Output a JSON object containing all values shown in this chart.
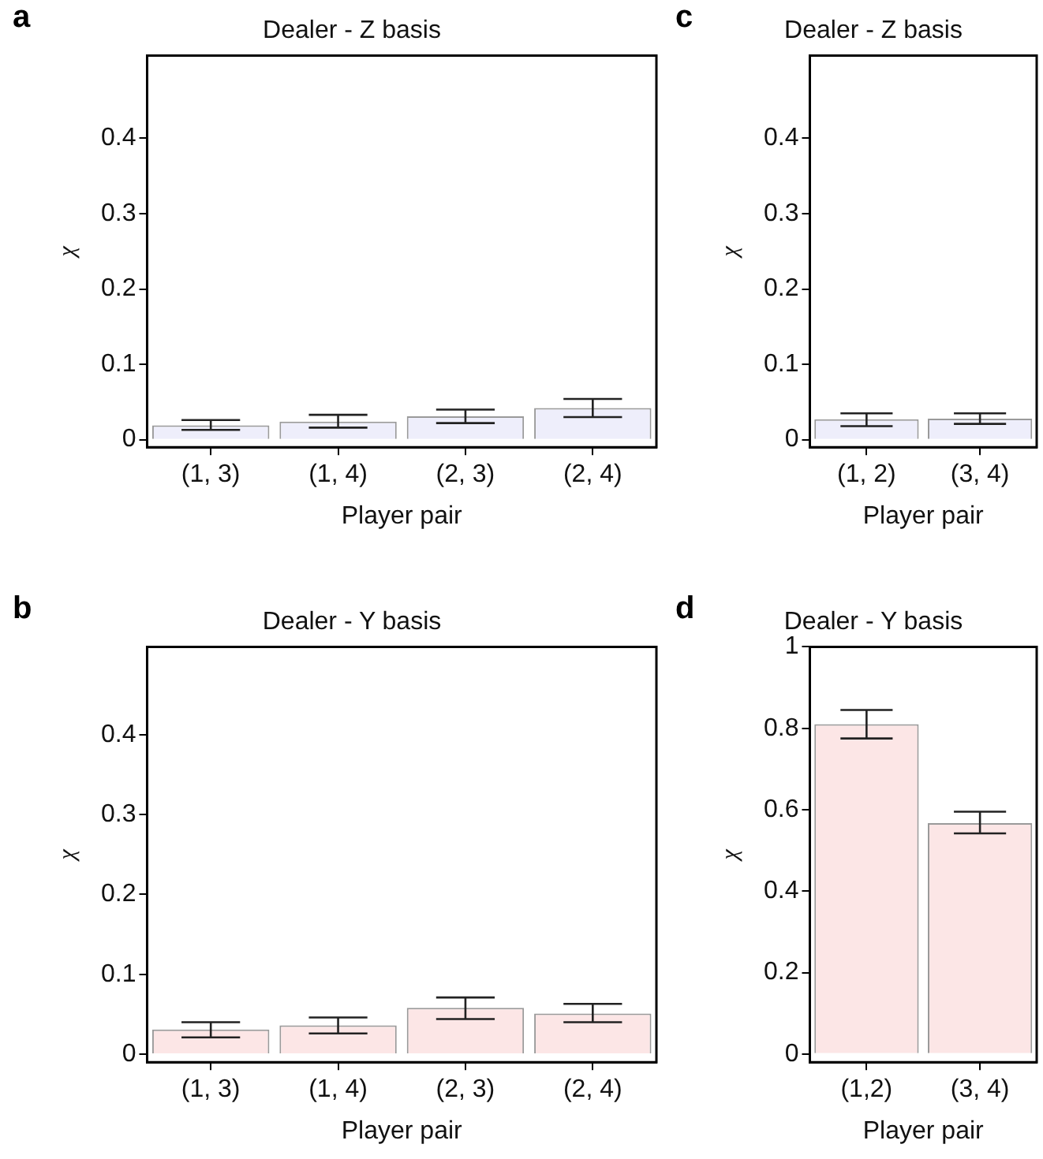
{
  "chart_data": [
    {
      "type": "bar",
      "title": "Dealer - Z basis",
      "xlabel": "Player pair",
      "ylabel": "χ",
      "annotations": [
        "a"
      ],
      "categories": [
        "(1, 3)",
        "(1, 4)",
        "(2, 3)",
        "(2, 4)"
      ],
      "values": [
        0.019,
        0.024,
        0.031,
        0.042
      ],
      "errors": [
        [
          0.013,
          0.026
        ],
        [
          0.016,
          0.033
        ],
        [
          0.022,
          0.04
        ],
        [
          0.03,
          0.054
        ]
      ],
      "color": "#eeeefb",
      "ylim": [
        -0.01,
        0.51
      ],
      "yticks": [
        0,
        0.1,
        0.2,
        0.3,
        0.4
      ],
      "grid": false,
      "legend": false
    },
    {
      "type": "bar",
      "title": "Dealer - Z basis",
      "xlabel": "Player pair",
      "ylabel": "χ",
      "annotations": [
        "c"
      ],
      "categories": [
        "(1, 2)",
        "(3, 4)"
      ],
      "values": [
        0.027,
        0.028
      ],
      "errors": [
        [
          0.018,
          0.035
        ],
        [
          0.021,
          0.035
        ]
      ],
      "color": "#eeeefb",
      "ylim": [
        -0.01,
        0.51
      ],
      "yticks": [
        0,
        0.1,
        0.2,
        0.3,
        0.4
      ],
      "grid": false,
      "legend": false
    },
    {
      "type": "bar",
      "title": "Dealer - Y basis",
      "xlabel": "Player pair",
      "ylabel": "χ",
      "annotations": [
        "b"
      ],
      "categories": [
        "(1, 3)",
        "(1, 4)",
        "(2, 3)",
        "(2, 4)"
      ],
      "values": [
        0.031,
        0.036,
        0.058,
        0.051
      ],
      "errors": [
        [
          0.021,
          0.04
        ],
        [
          0.026,
          0.046
        ],
        [
          0.044,
          0.071
        ],
        [
          0.04,
          0.063
        ]
      ],
      "color": "#fce6e6",
      "ylim": [
        -0.01,
        0.51
      ],
      "yticks": [
        0,
        0.1,
        0.2,
        0.3,
        0.4
      ],
      "grid": false,
      "legend": false
    },
    {
      "type": "bar",
      "title": "Dealer - Y basis",
      "xlabel": "Player pair",
      "ylabel": "χ",
      "annotations": [
        "d"
      ],
      "categories": [
        "(1,2)",
        "(3, 4)"
      ],
      "values": [
        0.81,
        0.567
      ],
      "errors": [
        [
          0.775,
          0.845
        ],
        [
          0.542,
          0.595
        ]
      ],
      "color": "#fce6e6",
      "ylim": [
        -0.02,
        1
      ],
      "yticks": [
        0,
        0.2,
        0.4,
        0.6,
        0.8,
        1
      ],
      "grid": false,
      "legend": false
    }
  ]
}
